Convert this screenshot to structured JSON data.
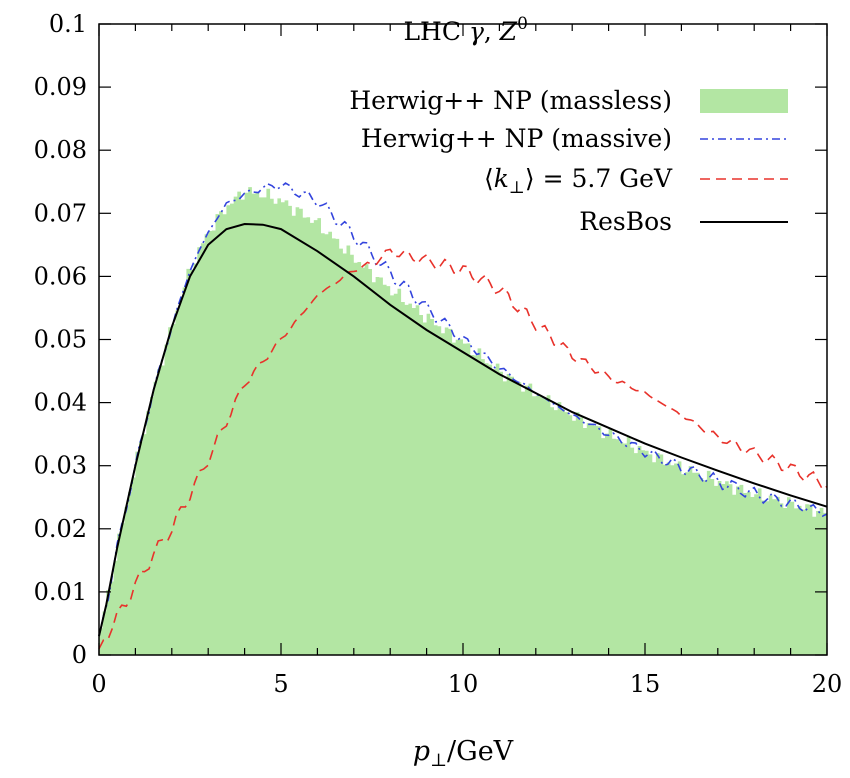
{
  "chart_data": {
    "type": "line",
    "title": "LHC γ, Z⁰",
    "title_parts": {
      "base": "LHC ",
      "gamma": "γ",
      "sep": ", ",
      "z": "Z",
      "z_sup": "0"
    },
    "xlabel": "p⊥/GeV",
    "xlabel_parts": {
      "p": "p",
      "sub": "⊥",
      "unit": "/GeV"
    },
    "ylabel": "",
    "xlim": [
      0,
      20
    ],
    "ylim": [
      0,
      0.1
    ],
    "xticks": [
      "0",
      "5",
      "10",
      "15",
      "20"
    ],
    "yticks": [
      "0",
      "0.01",
      "0.02",
      "0.03",
      "0.04",
      "0.05",
      "0.06",
      "0.07",
      "0.08",
      "0.09",
      "0.1"
    ],
    "grid": false,
    "legend_position": "top-right",
    "series": [
      {
        "name": "Herwig++ NP (massless)",
        "style": "filled-histogram",
        "color": "#b3e6a3",
        "x": [
          0,
          0.2,
          0.5,
          1,
          1.5,
          2,
          2.5,
          3,
          3.5,
          4,
          4.5,
          5,
          6,
          7,
          8,
          9,
          10,
          11,
          12,
          13,
          14,
          15,
          16,
          17,
          18,
          19,
          20
        ],
        "y": [
          0.003,
          0.008,
          0.017,
          0.03,
          0.042,
          0.052,
          0.061,
          0.067,
          0.071,
          0.0735,
          0.073,
          0.072,
          0.0685,
          0.063,
          0.058,
          0.0535,
          0.0495,
          0.045,
          0.0415,
          0.038,
          0.035,
          0.0322,
          0.0297,
          0.0275,
          0.0255,
          0.024,
          0.0225
        ]
      },
      {
        "name": "Herwig++ NP (massive)",
        "style": "dash-dot",
        "color": "#3344dd",
        "x": [
          0,
          0.2,
          0.5,
          1,
          1.5,
          2,
          2.5,
          3,
          3.5,
          4,
          4.5,
          5,
          6,
          7,
          8,
          9,
          10,
          11,
          12,
          13,
          14,
          15,
          16,
          17,
          18,
          19,
          20
        ],
        "y": [
          0.003,
          0.008,
          0.017,
          0.03,
          0.042,
          0.052,
          0.061,
          0.067,
          0.0715,
          0.073,
          0.074,
          0.0745,
          0.072,
          0.0665,
          0.0605,
          0.055,
          0.05,
          0.0455,
          0.0415,
          0.038,
          0.035,
          0.0322,
          0.0297,
          0.0275,
          0.0255,
          0.024,
          0.0225
        ]
      },
      {
        "name": "⟨k⊥⟩ = 5.7 GeV",
        "style": "dashed",
        "color": "#e8322b",
        "x": [
          0,
          0.5,
          1,
          1.5,
          2,
          3,
          4,
          5,
          6,
          7,
          7.5,
          8,
          9,
          10,
          11,
          12,
          13,
          14,
          15,
          16,
          17,
          18,
          19,
          20
        ],
        "y": [
          0.001,
          0.006,
          0.011,
          0.016,
          0.02,
          0.031,
          0.043,
          0.05,
          0.057,
          0.061,
          0.062,
          0.064,
          0.0625,
          0.061,
          0.058,
          0.0525,
          0.0475,
          0.044,
          0.0415,
          0.038,
          0.0345,
          0.032,
          0.0295,
          0.027
        ]
      },
      {
        "name": "ResBos",
        "style": "solid",
        "color": "#000000",
        "x": [
          0,
          0.2,
          0.5,
          1,
          1.5,
          2,
          2.5,
          3,
          3.5,
          4,
          4.5,
          5,
          6,
          7,
          8,
          9,
          10,
          11,
          12,
          13,
          14,
          15,
          16,
          17,
          18,
          19,
          20
        ],
        "y": [
          0.003,
          0.008,
          0.017,
          0.03,
          0.042,
          0.052,
          0.06,
          0.065,
          0.0675,
          0.0683,
          0.0682,
          0.0675,
          0.064,
          0.06,
          0.0555,
          0.0515,
          0.048,
          0.0445,
          0.0415,
          0.0385,
          0.036,
          0.0335,
          0.0313,
          0.0292,
          0.0272,
          0.0253,
          0.0235
        ]
      }
    ]
  }
}
